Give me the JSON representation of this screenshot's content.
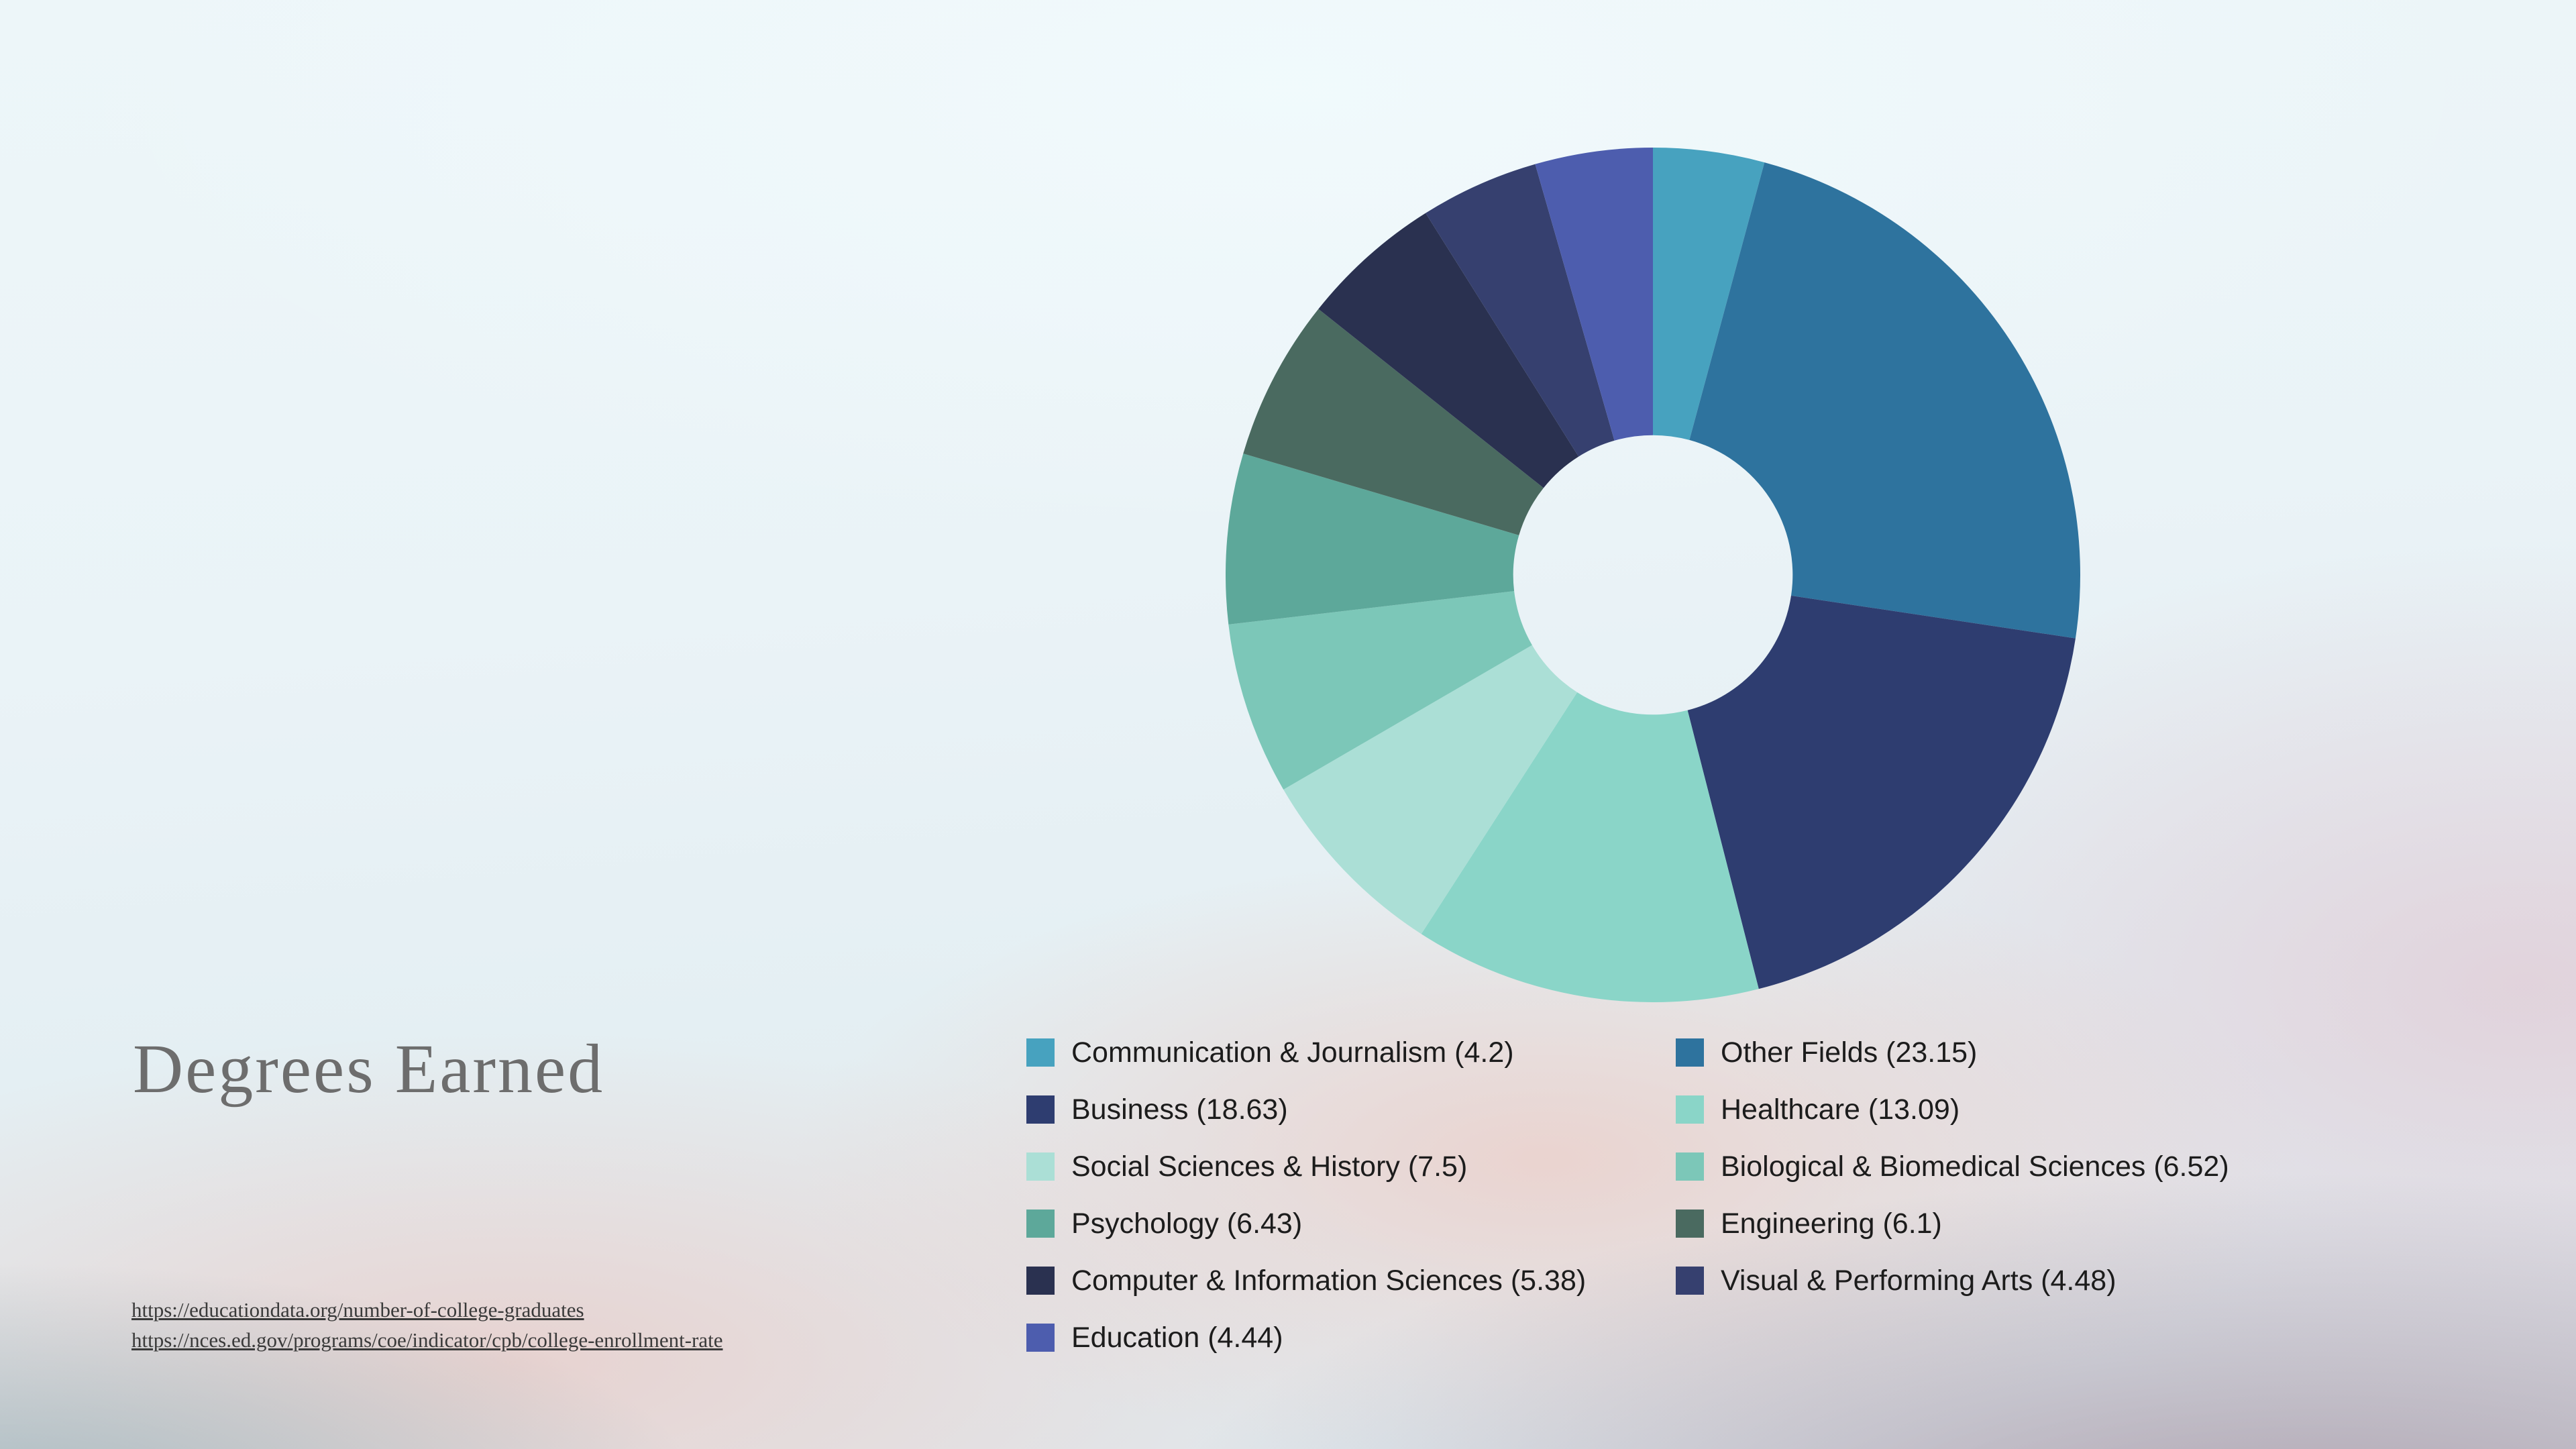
{
  "slide": {
    "title": "Degrees Earned",
    "sources": [
      "https://educationdata.org/number-of-college-graduates",
      "https://nces.ed.gov/programs/coe/indicator/cpb/college-enrollment-rate"
    ]
  },
  "chart_data": {
    "type": "pie",
    "subtype": "donut",
    "title": "Degrees Earned",
    "unit": "percent",
    "start_angle_deg": -90,
    "direction": "clockwise",
    "inner_radius_ratio": 0.327,
    "legend_position": "bottom",
    "segments": [
      {
        "label": "Communication & Journalism",
        "value": 4.2,
        "color": "#47a2bf"
      },
      {
        "label": "Other Fields",
        "value": 23.15,
        "color": "#2e739e"
      },
      {
        "label": "Business",
        "value": 18.63,
        "color": "#2e3d70"
      },
      {
        "label": "Healthcare",
        "value": 13.09,
        "color": "#8ad5c8"
      },
      {
        "label": "Social Sciences & History",
        "value": 7.5,
        "color": "#abdfd6"
      },
      {
        "label": "Biological & Biomedical Sciences",
        "value": 6.52,
        "color": "#7cc7b8"
      },
      {
        "label": "Psychology",
        "value": 6.43,
        "color": "#5da89a"
      },
      {
        "label": "Engineering",
        "value": 6.1,
        "color": "#4a6a60"
      },
      {
        "label": "Computer & Information Sciences",
        "value": 5.38,
        "color": "#2a3150"
      },
      {
        "label": "Visual & Performing Arts",
        "value": 4.48,
        "color": "#36406f"
      },
      {
        "label": "Education",
        "value": 4.44,
        "color": "#4d5dae"
      }
    ]
  }
}
